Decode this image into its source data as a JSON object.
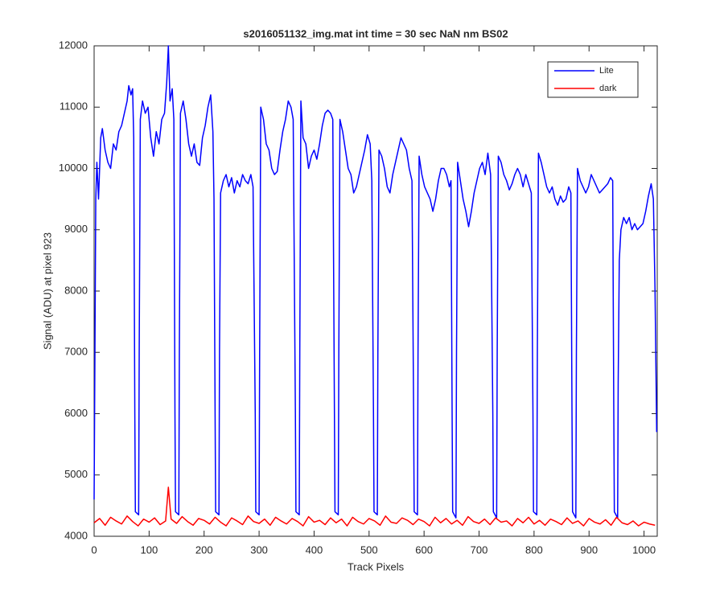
{
  "chart_data": {
    "type": "line",
    "title": "s2016051132_img.mat int time = 30 sec  NaN nm BS02",
    "xlabel": "Track Pixels",
    "ylabel": "Signal (ADU) at pixel 923",
    "xlim": [
      0,
      1024
    ],
    "ylim": [
      4000,
      12000
    ],
    "xticks": [
      0,
      100,
      200,
      300,
      400,
      500,
      600,
      700,
      800,
      900,
      1000
    ],
    "yticks": [
      4000,
      5000,
      6000,
      7000,
      8000,
      9000,
      10000,
      11000,
      12000
    ],
    "legend": "northeast",
    "series": [
      {
        "name": "Lite",
        "color": "#0000ff",
        "x": [
          0,
          3,
          5,
          8,
          12,
          15,
          20,
          25,
          30,
          35,
          40,
          45,
          50,
          55,
          60,
          63,
          67,
          70,
          72,
          74,
          75,
          81,
          82,
          84,
          88,
          93,
          98,
          103,
          108,
          113,
          118,
          123,
          128,
          132,
          135,
          138,
          142,
          145,
          147,
          148,
          154,
          155,
          157,
          162,
          167,
          172,
          177,
          182,
          187,
          192,
          197,
          202,
          207,
          212,
          216,
          218,
          220,
          221,
          227,
          228,
          230,
          235,
          240,
          245,
          250,
          255,
          260,
          265,
          270,
          275,
          280,
          285,
          289,
          293,
          294,
          300,
          301,
          303,
          308,
          313,
          318,
          323,
          328,
          333,
          338,
          343,
          348,
          353,
          358,
          362,
          366,
          367,
          373,
          374,
          376,
          380,
          385,
          390,
          395,
          400,
          405,
          410,
          415,
          420,
          425,
          430,
          434,
          437,
          438,
          444,
          445,
          447,
          452,
          457,
          462,
          467,
          472,
          477,
          482,
          487,
          492,
          497,
          502,
          505,
          508,
          509,
          515,
          516,
          518,
          523,
          528,
          533,
          538,
          543,
          548,
          553,
          558,
          563,
          568,
          573,
          578,
          581,
          582,
          588,
          589,
          591,
          596,
          601,
          606,
          611,
          616,
          621,
          626,
          631,
          636,
          641,
          646,
          649,
          651,
          652,
          658,
          659,
          661,
          666,
          671,
          676,
          681,
          686,
          691,
          696,
          701,
          706,
          711,
          716,
          721,
          725,
          726,
          732,
          733,
          735,
          740,
          745,
          750,
          755,
          760,
          765,
          770,
          775,
          780,
          785,
          790,
          795,
          798,
          799,
          805,
          806,
          808,
          813,
          818,
          823,
          828,
          833,
          838,
          843,
          848,
          853,
          858,
          863,
          867,
          869,
          870,
          876,
          877,
          879,
          884,
          889,
          894,
          899,
          904,
          909,
          914,
          919,
          924,
          929,
          934,
          939,
          943,
          945,
          946,
          952,
          953,
          955,
          958,
          963,
          968,
          973,
          978,
          983,
          988,
          993,
          998,
          1003,
          1008,
          1013,
          1017,
          1020,
          1023
        ],
        "values": [
          4600,
          9500,
          10100,
          9500,
          10500,
          10650,
          10300,
          10100,
          10000,
          10400,
          10300,
          10600,
          10700,
          10900,
          11100,
          11350,
          11200,
          11300,
          10500,
          6000,
          4400,
          4350,
          7000,
          10800,
          11100,
          10900,
          11000,
          10500,
          10200,
          10600,
          10400,
          10800,
          10900,
          11400,
          12000,
          11100,
          11300,
          10800,
          6000,
          4400,
          4350,
          7000,
          10900,
          11100,
          10800,
          10400,
          10200,
          10400,
          10100,
          10050,
          10500,
          10700,
          11000,
          11200,
          10600,
          9500,
          6000,
          4400,
          4350,
          7000,
          9600,
          9800,
          9900,
          9700,
          9850,
          9600,
          9800,
          9700,
          9900,
          9800,
          9750,
          9900,
          9700,
          6000,
          4400,
          4350,
          7000,
          11000,
          10800,
          10400,
          10300,
          10000,
          9900,
          9950,
          10300,
          10600,
          10800,
          11100,
          11000,
          10800,
          6000,
          4400,
          4350,
          7000,
          11100,
          10500,
          10400,
          10000,
          10200,
          10300,
          10150,
          10400,
          10700,
          10900,
          10950,
          10900,
          10800,
          6000,
          4400,
          4350,
          7000,
          10800,
          10600,
          10300,
          10000,
          9900,
          9600,
          9700,
          9900,
          10100,
          10300,
          10550,
          10400,
          9800,
          6000,
          4400,
          4350,
          7000,
          10300,
          10200,
          10000,
          9700,
          9600,
          9900,
          10100,
          10300,
          10500,
          10400,
          10300,
          10000,
          9800,
          6000,
          4400,
          4350,
          7000,
          10200,
          9900,
          9700,
          9600,
          9500,
          9300,
          9500,
          9800,
          10000,
          10000,
          9900,
          9700,
          9800,
          6000,
          4400,
          4300,
          7000,
          10100,
          9800,
          9500,
          9300,
          9050,
          9300,
          9600,
          9800,
          10000,
          10100,
          9900,
          10250,
          9900,
          6000,
          4400,
          4300,
          7000,
          10200,
          10100,
          9900,
          9800,
          9650,
          9750,
          9900,
          10000,
          9900,
          9700,
          9900,
          9750,
          9600,
          6000,
          4400,
          4350,
          7000,
          10250,
          10100,
          9900,
          9700,
          9600,
          9700,
          9500,
          9400,
          9550,
          9450,
          9500,
          9700,
          9600,
          6000,
          4400,
          4300,
          7000,
          10000,
          9800,
          9700,
          9600,
          9700,
          9900,
          9800,
          9700,
          9600,
          9650,
          9700,
          9750,
          9850,
          9800,
          6000,
          4400,
          4300,
          6500,
          8500,
          9000,
          9200,
          9100,
          9200,
          9000,
          9100,
          9000,
          9050,
          9100,
          9300,
          9550,
          9750,
          9500,
          8000,
          5700
        ]
      },
      {
        "name": "dark",
        "color": "#ff0000",
        "x": [
          0,
          10,
          20,
          30,
          40,
          50,
          60,
          70,
          80,
          90,
          100,
          110,
          120,
          130,
          135,
          140,
          150,
          160,
          170,
          180,
          190,
          200,
          210,
          220,
          230,
          240,
          250,
          260,
          270,
          280,
          290,
          300,
          310,
          320,
          330,
          340,
          350,
          360,
          370,
          380,
          390,
          400,
          410,
          420,
          430,
          440,
          450,
          460,
          470,
          480,
          490,
          500,
          510,
          520,
          530,
          540,
          550,
          560,
          570,
          580,
          590,
          600,
          610,
          620,
          630,
          640,
          650,
          660,
          670,
          680,
          690,
          700,
          710,
          720,
          730,
          740,
          750,
          760,
          770,
          780,
          790,
          800,
          810,
          820,
          830,
          840,
          850,
          860,
          870,
          880,
          890,
          900,
          910,
          920,
          930,
          940,
          950,
          960,
          970,
          980,
          990,
          1000,
          1010,
          1020
        ],
        "values": [
          4220,
          4290,
          4180,
          4310,
          4250,
          4200,
          4330,
          4240,
          4170,
          4280,
          4230,
          4300,
          4190,
          4250,
          4800,
          4280,
          4210,
          4320,
          4240,
          4180,
          4290,
          4260,
          4200,
          4310,
          4230,
          4170,
          4300,
          4250,
          4190,
          4330,
          4240,
          4210,
          4280,
          4180,
          4310,
          4250,
          4200,
          4290,
          4240,
          4170,
          4320,
          4230,
          4260,
          4190,
          4300,
          4220,
          4280,
          4170,
          4310,
          4240,
          4200,
          4290,
          4250,
          4180,
          4330,
          4230,
          4210,
          4300,
          4260,
          4190,
          4280,
          4240,
          4170,
          4310,
          4220,
          4290,
          4200,
          4260,
          4180,
          4320,
          4240,
          4210,
          4280,
          4190,
          4300,
          4230,
          4250,
          4170,
          4290,
          4220,
          4310,
          4200,
          4260,
          4180,
          4280,
          4240,
          4190,
          4300,
          4210,
          4250,
          4170,
          4290,
          4230,
          4200,
          4270,
          4180,
          4310,
          4220,
          4190,
          4250,
          4170,
          4230,
          4200,
          4180
        ]
      }
    ]
  }
}
